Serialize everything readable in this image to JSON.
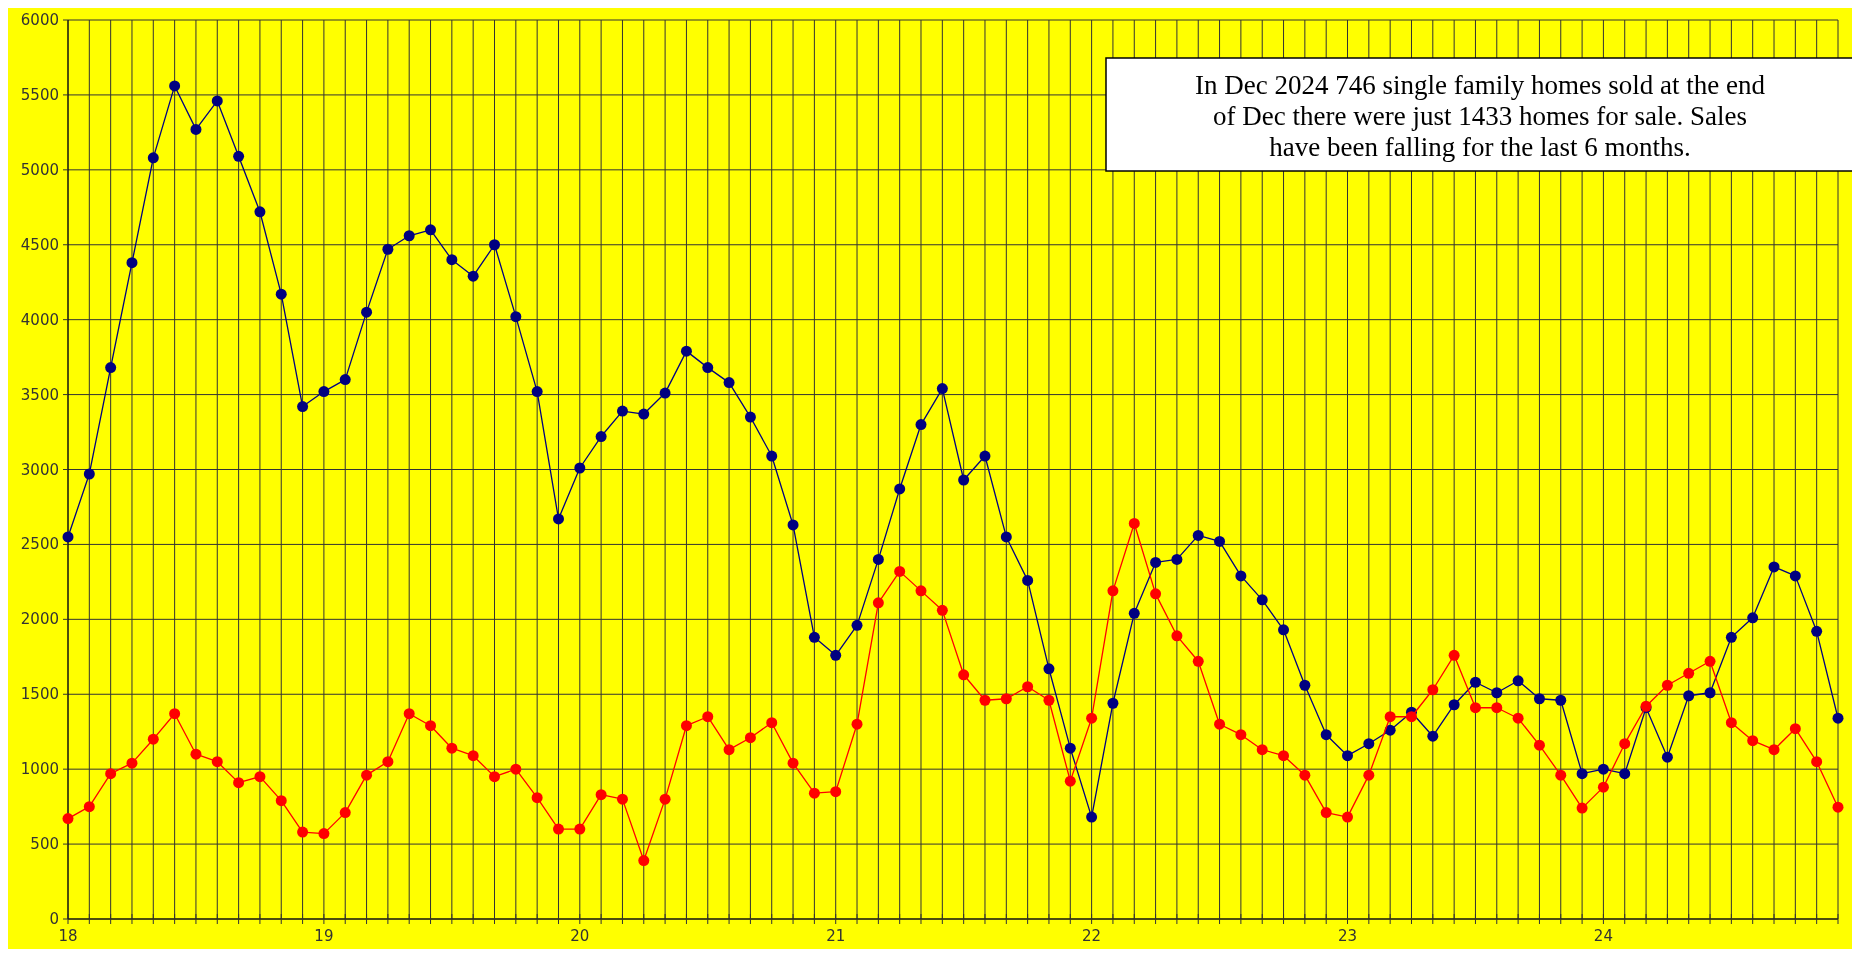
{
  "chart_data": {
    "type": "line",
    "x": [
      18,
      18.0833,
      18.1667,
      18.25,
      18.3333,
      18.4167,
      18.5,
      18.5833,
      18.6667,
      18.75,
      18.8333,
      18.9167,
      19,
      19.0833,
      19.1667,
      19.25,
      19.3333,
      19.4167,
      19.5,
      19.5833,
      19.6667,
      19.75,
      19.8333,
      19.9167,
      20,
      20.0833,
      20.1667,
      20.25,
      20.3333,
      20.4167,
      20.5,
      20.5833,
      20.6667,
      20.75,
      20.8333,
      20.9167,
      21,
      21.0833,
      21.1667,
      21.25,
      21.3333,
      21.4167,
      21.5,
      21.5833,
      21.6667,
      21.75,
      21.8333,
      21.9167,
      22,
      22.0833,
      22.1667,
      22.25,
      22.3333,
      22.4167,
      22.5,
      22.5833,
      22.6667,
      22.75,
      22.8333,
      22.9167,
      23,
      23.0833,
      23.1667,
      23.25,
      23.3333,
      23.4167,
      23.5,
      23.5833,
      23.6667,
      23.75,
      23.8333,
      23.9167,
      24,
      24.0833,
      24.1667,
      24.25,
      24.3333,
      24.4167,
      24.5,
      24.5833,
      24.6667,
      24.75,
      24.8333,
      24.9167
    ],
    "series": [
      {
        "color": "#000080",
        "values": [
          2550,
          2970,
          3680,
          4380,
          5080,
          5560,
          5270,
          5460,
          5090,
          4720,
          4170,
          3420,
          3520,
          3600,
          4050,
          4470,
          4560,
          4600,
          4400,
          4290,
          4500,
          4020,
          3520,
          2670,
          3010,
          3220,
          3390,
          3370,
          3510,
          3790,
          3680,
          3580,
          3350,
          3090,
          2630,
          1880,
          1760,
          1960,
          2400,
          2870,
          3300,
          3540,
          2930,
          3090,
          2550,
          2260,
          1670,
          1140,
          680,
          1440,
          2040,
          2380,
          2400,
          2560,
          2520,
          2290,
          2130,
          1930,
          1560,
          1230,
          1090,
          1170,
          1260,
          1380,
          1220,
          1430,
          1580,
          1510,
          1590,
          1470,
          1460,
          970,
          1000,
          970,
          1410,
          1080,
          1490,
          1510,
          1880,
          2010,
          2350,
          2290,
          1920,
          1340
        ]
      },
      {
        "color": "#ff0000",
        "values": [
          670,
          750,
          970,
          1040,
          1200,
          1370,
          1100,
          1050,
          910,
          950,
          790,
          580,
          570,
          710,
          960,
          1050,
          1370,
          1290,
          1140,
          1090,
          950,
          1000,
          810,
          600,
          600,
          830,
          800,
          390,
          800,
          1290,
          1350,
          1130,
          1210,
          1310,
          1040,
          840,
          850,
          1300,
          2110,
          2320,
          2190,
          2060,
          1630,
          1460,
          1470,
          1550,
          1460,
          920,
          1340,
          2190,
          2640,
          2170,
          1890,
          1720,
          1300,
          1230,
          1130,
          1090,
          960,
          710,
          680,
          960,
          1350,
          1350,
          1530,
          1760,
          1410,
          1410,
          1340,
          1160,
          960,
          740,
          880,
          1170,
          1420,
          1560,
          1640,
          1720,
          1310,
          1190,
          1130,
          1270,
          1050,
          746
        ]
      }
    ],
    "xlim": [
      18,
      24.9167
    ],
    "xticks": [
      18,
      {
        "value": 18.0833,
        "label": null
      },
      {
        "value": 18.1667,
        "label": null
      },
      {
        "value": 18.25,
        "label": null
      },
      {
        "value": 18.3333,
        "label": null
      },
      {
        "value": 18.4167,
        "label": null
      },
      {
        "value": 18.5,
        "label": null
      },
      {
        "value": 18.5833,
        "label": null
      },
      {
        "value": 18.6667,
        "label": null
      },
      {
        "value": 18.75,
        "label": null
      },
      {
        "value": 18.8333,
        "label": null
      },
      {
        "value": 18.9167,
        "label": null
      },
      19,
      {
        "value": 19.0833,
        "label": null
      },
      {
        "value": 19.1667,
        "label": null
      },
      {
        "value": 19.25,
        "label": null
      },
      {
        "value": 19.3333,
        "label": null
      },
      {
        "value": 19.4167,
        "label": null
      },
      {
        "value": 19.5,
        "label": null
      },
      {
        "value": 19.5833,
        "label": null
      },
      {
        "value": 19.6667,
        "label": null
      },
      {
        "value": 19.75,
        "label": null
      },
      {
        "value": 19.8333,
        "label": null
      },
      {
        "value": 19.9167,
        "label": null
      },
      20,
      {
        "value": 20.0833,
        "label": null
      },
      {
        "value": 20.1667,
        "label": null
      },
      {
        "value": 20.25,
        "label": null
      },
      {
        "value": 20.3333,
        "label": null
      },
      {
        "value": 20.4167,
        "label": null
      },
      {
        "value": 20.5,
        "label": null
      },
      {
        "value": 20.5833,
        "label": null
      },
      {
        "value": 20.6667,
        "label": null
      },
      {
        "value": 20.75,
        "label": null
      },
      {
        "value": 20.8333,
        "label": null
      },
      {
        "value": 20.9167,
        "label": null
      },
      21,
      {
        "value": 21.0833,
        "label": null
      },
      {
        "value": 21.1667,
        "label": null
      },
      {
        "value": 21.25,
        "label": null
      },
      {
        "value": 21.3333,
        "label": null
      },
      {
        "value": 21.4167,
        "label": null
      },
      {
        "value": 21.5,
        "label": null
      },
      {
        "value": 21.5833,
        "label": null
      },
      {
        "value": 21.6667,
        "label": null
      },
      {
        "value": 21.75,
        "label": null
      },
      {
        "value": 21.8333,
        "label": null
      },
      {
        "value": 21.9167,
        "label": null
      },
      22,
      {
        "value": 22.0833,
        "label": null
      },
      {
        "value": 22.1667,
        "label": null
      },
      {
        "value": 22.25,
        "label": null
      },
      {
        "value": 22.3333,
        "label": null
      },
      {
        "value": 22.4167,
        "label": null
      },
      {
        "value": 22.5,
        "label": null
      },
      {
        "value": 22.5833,
        "label": null
      },
      {
        "value": 22.6667,
        "label": null
      },
      {
        "value": 22.75,
        "label": null
      },
      {
        "value": 22.8333,
        "label": null
      },
      {
        "value": 22.9167,
        "label": null
      },
      23,
      {
        "value": 23.0833,
        "label": null
      },
      {
        "value": 23.1667,
        "label": null
      },
      {
        "value": 23.25,
        "label": null
      },
      {
        "value": 23.3333,
        "label": null
      },
      {
        "value": 23.4167,
        "label": null
      },
      {
        "value": 23.5,
        "label": null
      },
      {
        "value": 23.5833,
        "label": null
      },
      {
        "value": 23.6667,
        "label": null
      },
      {
        "value": 23.75,
        "label": null
      },
      {
        "value": 23.8333,
        "label": null
      },
      {
        "value": 23.9167,
        "label": null
      },
      24,
      {
        "value": 24.0833,
        "label": null
      },
      {
        "value": 24.1667,
        "label": null
      },
      {
        "value": 24.25,
        "label": null
      },
      {
        "value": 24.3333,
        "label": null
      },
      {
        "value": 24.4167,
        "label": null
      },
      {
        "value": 24.5,
        "label": null
      },
      {
        "value": 24.5833,
        "label": null
      },
      {
        "value": 24.6667,
        "label": null
      },
      {
        "value": 24.75,
        "label": null
      },
      {
        "value": 24.8333,
        "label": null
      },
      {
        "value": 24.9167,
        "label": null
      }
    ],
    "ylim": [
      0,
      6000
    ],
    "yticks": [
      0,
      500,
      1000,
      1500,
      2000,
      2500,
      3000,
      3500,
      4000,
      4500,
      5000,
      5500,
      6000
    ],
    "grid": true,
    "marker": "circle",
    "line_style": "solid",
    "annotations": [
      "In Dec 2024 746 single family homes sold at the end of Dec there were just 1433 homes for sale. Sales have been falling for the last 6 months."
    ]
  }
}
